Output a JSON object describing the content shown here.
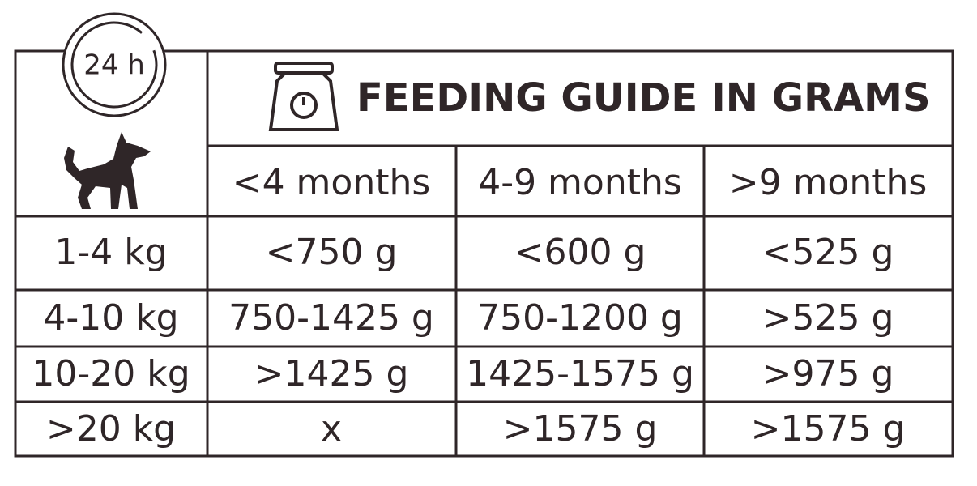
{
  "badge": "24 h",
  "header": {
    "title": "FEEDING GUIDE IN GRAMS"
  },
  "table": {
    "columns": [
      "<4 months",
      "4-9 months",
      ">9 months"
    ],
    "rows": [
      [
        "1-4 kg",
        "<750 g",
        "<600 g",
        "<525 g"
      ],
      [
        "4-10 kg",
        "750-1425 g",
        "750-1200 g",
        ">525 g"
      ],
      [
        "10-20 kg",
        ">1425 g",
        "1425-1575 g",
        ">975 g"
      ],
      [
        ">20 kg",
        "x",
        ">1575 g",
        ">1575 g"
      ]
    ]
  }
}
